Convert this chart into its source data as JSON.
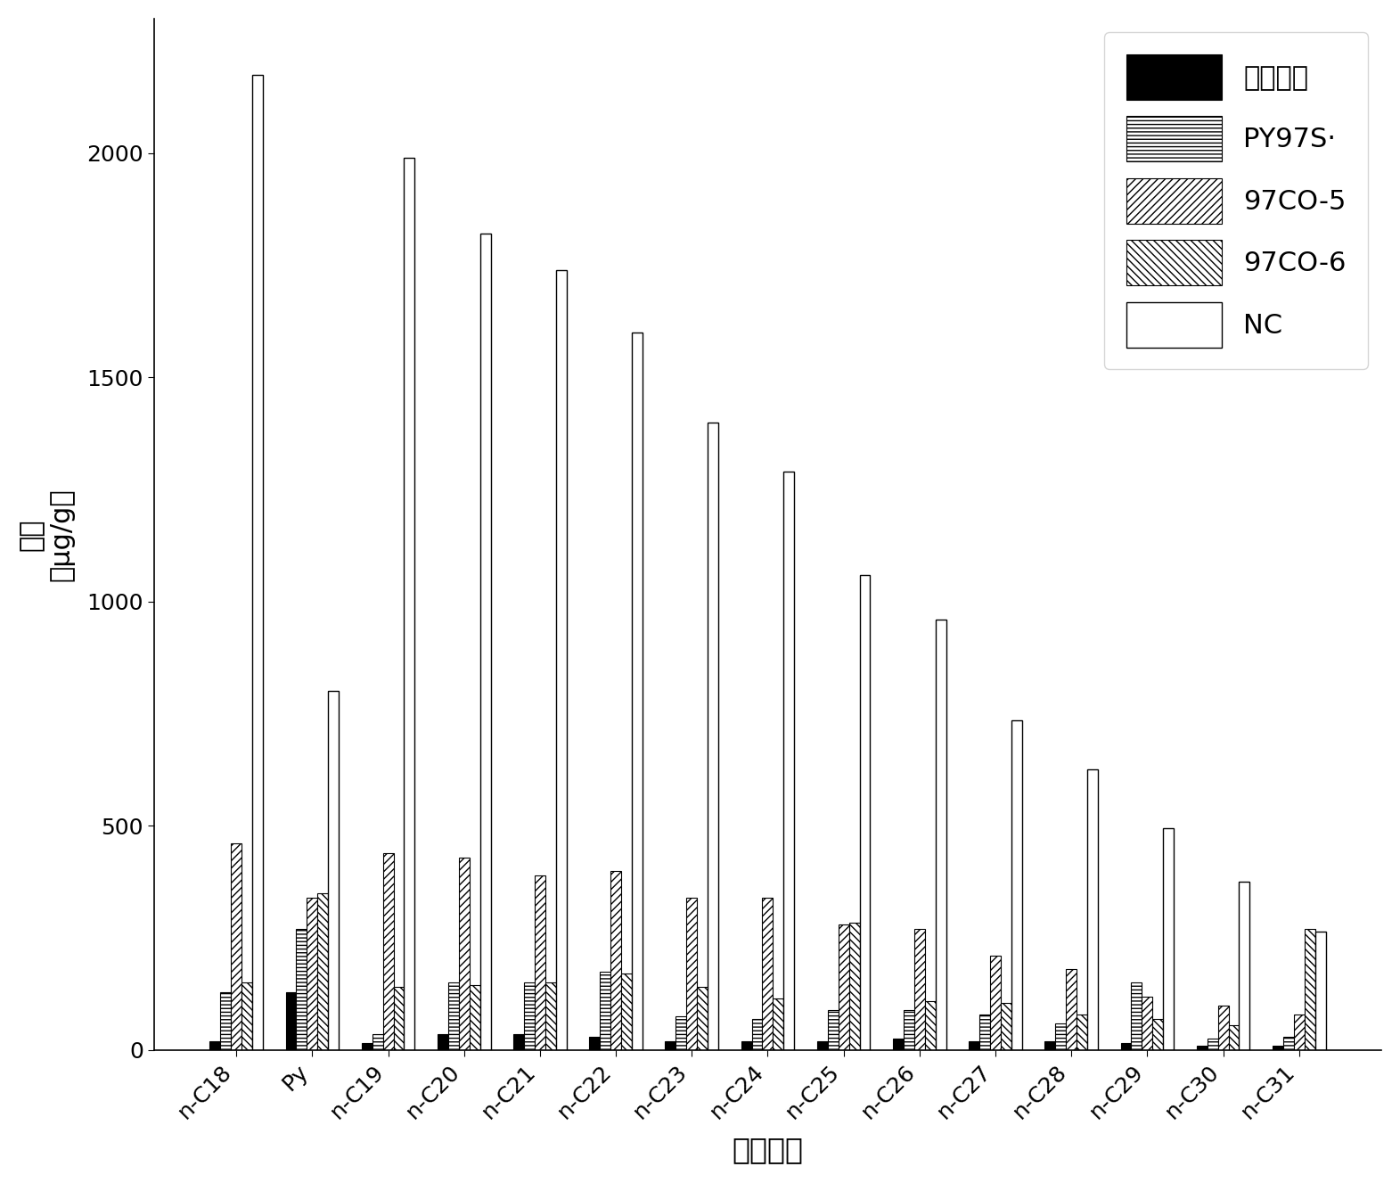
{
  "categories": [
    "n-C18",
    "Py",
    "n-C19",
    "n-C20",
    "n-C21",
    "n-C22",
    "n-C23",
    "n-C24",
    "n-C25",
    "n-C26",
    "n-C27",
    "n-C28",
    "n-C29",
    "n-C30",
    "n-C31"
  ],
  "series": {
    "fu_he_jun_ye": [
      20,
      130,
      15,
      35,
      35,
      30,
      20,
      20,
      20,
      25,
      20,
      20,
      15,
      10,
      10
    ],
    "PY97S": [
      130,
      270,
      35,
      150,
      150,
      175,
      75,
      70,
      90,
      90,
      80,
      60,
      150,
      25,
      30
    ],
    "97CO-5": [
      460,
      340,
      440,
      430,
      390,
      400,
      340,
      340,
      280,
      270,
      210,
      180,
      120,
      100,
      80
    ],
    "97CO-6": [
      150,
      350,
      140,
      145,
      150,
      170,
      140,
      115,
      285,
      110,
      105,
      80,
      70,
      55,
      270
    ],
    "NC": [
      2175,
      800,
      1990,
      1820,
      1740,
      1600,
      1400,
      1290,
      1060,
      960,
      735,
      625,
      495,
      375,
      265
    ]
  },
  "ylabel_line1": "浓度",
  "ylabel_line2": "（μg/g）",
  "xlabel": "正构烷烃",
  "ylim": [
    0,
    2300
  ],
  "yticks": [
    0,
    500,
    1000,
    1500,
    2000
  ],
  "legend_labels": [
    "复合菌液",
    "PY97S·",
    "97CO-5",
    "97CO-6",
    "NC"
  ],
  "background_color": "#ffffff",
  "bar_width": 0.14
}
